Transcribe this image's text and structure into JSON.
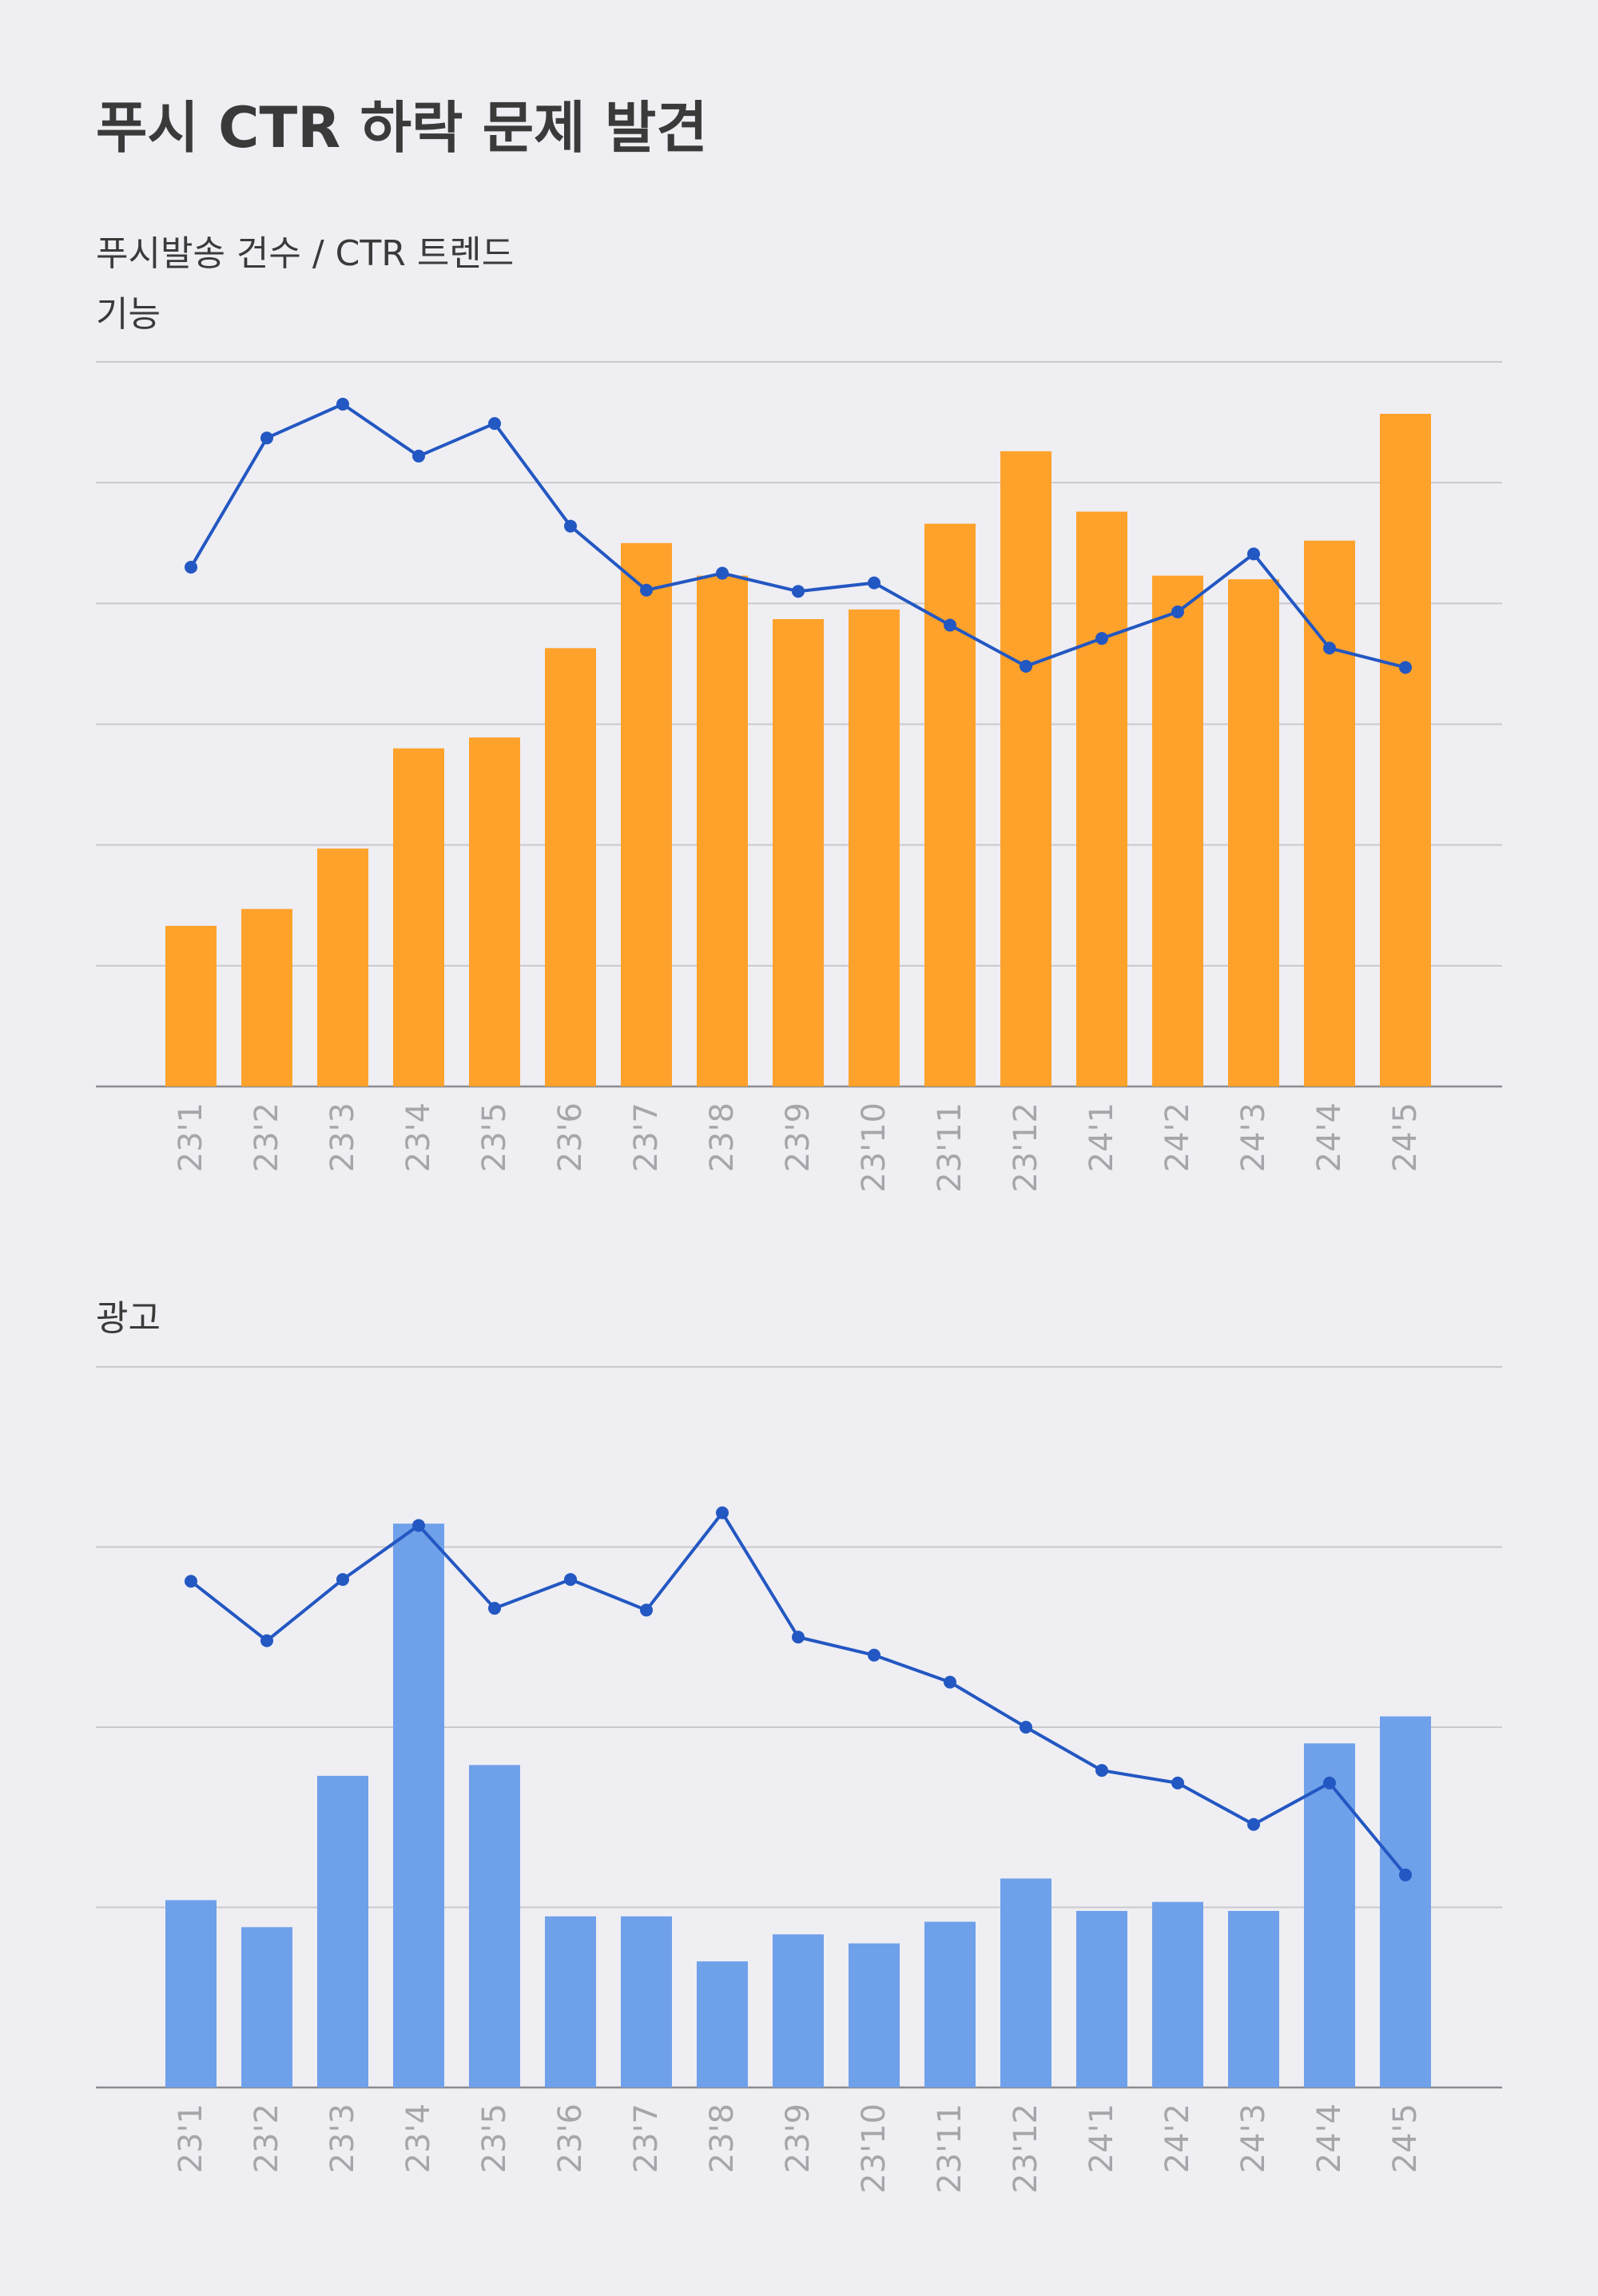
{
  "page": {
    "title": "푸시 CTR 하락 문제 발견",
    "subtitle": "푸시발송 건수 / CTR 트렌드"
  },
  "chart_data": [
    {
      "type": "bar",
      "name": "feature",
      "label": "기능",
      "categories": [
        "23'1",
        "23'2",
        "23'3",
        "23'4",
        "23'5",
        "23'6",
        "23'7",
        "23'8",
        "23'9",
        "23'10",
        "23'11",
        "23'12",
        "24'1",
        "24'2",
        "24'3",
        "24'4",
        "24'5"
      ],
      "series": [
        {
          "name": "푸시발송 건수",
          "kind": "bar",
          "color": "#ffa22b",
          "values": [
            13.3,
            14.7,
            19.7,
            28.0,
            28.9,
            36.3,
            45.0,
            42.3,
            38.7,
            39.5,
            46.6,
            52.6,
            47.6,
            42.3,
            42.0,
            45.2,
            55.7
          ]
        },
        {
          "name": "CTR",
          "kind": "line",
          "color": "#2357c2",
          "values": [
            43.0,
            53.7,
            56.5,
            52.2,
            54.9,
            46.4,
            41.1,
            42.5,
            41.0,
            41.7,
            38.2,
            34.8,
            37.1,
            39.3,
            44.1,
            36.3,
            34.7
          ]
        }
      ],
      "ylim": [
        0,
        60
      ],
      "grid": true
    },
    {
      "type": "bar",
      "name": "ad",
      "label": "광고",
      "categories": [
        "23'1",
        "23'2",
        "23'3",
        "23'4",
        "23'5",
        "23'6",
        "23'7",
        "23'8",
        "23'9",
        "23'10",
        "23'11",
        "23'12",
        "24'1",
        "24'2",
        "24'3",
        "24'4",
        "24'5"
      ],
      "series": [
        {
          "name": "푸시발송 건수",
          "kind": "bar",
          "color": "#6fa0ea",
          "values": [
            10.4,
            8.9,
            17.3,
            31.3,
            17.9,
            9.5,
            9.5,
            7.0,
            8.5,
            8.0,
            9.2,
            11.6,
            9.8,
            10.3,
            9.8,
            19.1,
            20.6
          ]
        },
        {
          "name": "CTR",
          "kind": "line",
          "color": "#2357c2",
          "values": [
            28.1,
            24.8,
            28.2,
            31.2,
            26.6,
            28.2,
            26.5,
            31.9,
            25.0,
            24.0,
            22.5,
            20.0,
            17.6,
            16.9,
            14.6,
            16.9,
            11.8
          ]
        }
      ],
      "ylim": [
        0,
        40
      ],
      "grid": true
    }
  ]
}
